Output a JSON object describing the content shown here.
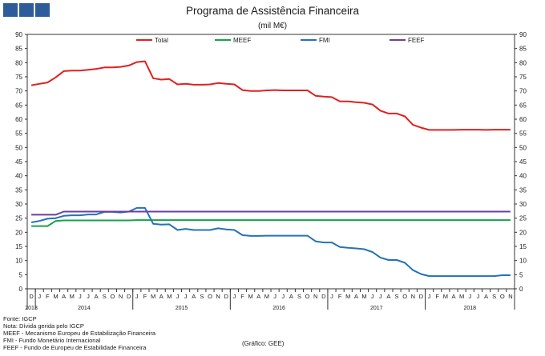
{
  "header": {
    "logo_name": "publisher-logo",
    "title": "Programa de Assistência Financeira",
    "subtitle": "(mil M€)"
  },
  "notes": [
    "Fonte: IGCP",
    "Nota: Dívida gerida pelo IGCP",
    "MEEF - Mecanismo Europeu de Estabilização Financeira",
    "FMI - Fundo Monetário Internacional",
    "FEEF - Fundo de Europeu de Estabilidade Financeira"
  ],
  "credit": "(Gráfico: GEE)",
  "chart_data": {
    "type": "line",
    "title": "Programa de Assistência Financeira",
    "subtitle": "(mil M€)",
    "ylim": [
      0,
      90
    ],
    "yticks": [
      0,
      5,
      10,
      15,
      20,
      25,
      30,
      35,
      40,
      45,
      50,
      55,
      60,
      65,
      70,
      75,
      80,
      85,
      90
    ],
    "grid": false,
    "legend_position": "top",
    "x_months": [
      "D",
      "J",
      "F",
      "M",
      "A",
      "M",
      "J",
      "J",
      "A",
      "S",
      "O",
      "N",
      "D",
      "J",
      "F",
      "M",
      "A",
      "M",
      "J",
      "J",
      "A",
      "S",
      "O",
      "N",
      "D",
      "J",
      "F",
      "M",
      "A",
      "M",
      "J",
      "J",
      "A",
      "S",
      "O",
      "N",
      "D",
      "J",
      "F",
      "M",
      "A",
      "M",
      "J",
      "J",
      "A",
      "S",
      "O",
      "N",
      "D",
      "J",
      "F",
      "M",
      "A",
      "M",
      "J",
      "J",
      "A",
      "S",
      "O",
      "N"
    ],
    "x_years": [
      {
        "label": "2013",
        "start": 0,
        "end": 0
      },
      {
        "label": "2014",
        "start": 1,
        "end": 12
      },
      {
        "label": "2015",
        "start": 13,
        "end": 24
      },
      {
        "label": "2016",
        "start": 25,
        "end": 36
      },
      {
        "label": "2017",
        "start": 37,
        "end": 48
      },
      {
        "label": "2018",
        "start": 49,
        "end": 59
      }
    ],
    "series": [
      {
        "name": "Total",
        "color": "#e02020",
        "values": [
          72.0,
          72.5,
          73.0,
          74.8,
          77.0,
          77.2,
          77.2,
          77.5,
          77.8,
          78.3,
          78.3,
          78.5,
          79.0,
          80.2,
          80.5,
          74.5,
          74.0,
          74.2,
          72.3,
          72.5,
          72.2,
          72.2,
          72.3,
          72.8,
          72.5,
          72.3,
          70.3,
          70.0,
          70.0,
          70.2,
          70.3,
          70.2,
          70.2,
          70.2,
          70.2,
          68.3,
          68.0,
          67.8,
          66.3,
          66.3,
          66.0,
          65.8,
          65.2,
          63.0,
          62.0,
          62.0,
          61.0,
          58.0,
          57.0,
          56.2,
          56.2,
          56.2,
          56.2,
          56.3,
          56.3,
          56.3,
          56.2,
          56.3,
          56.3,
          56.3
        ]
      },
      {
        "name": "MEEF",
        "color": "#16a34a",
        "values": [
          22.2,
          22.2,
          22.2,
          24.0,
          24.2,
          24.2,
          24.2,
          24.2,
          24.2,
          24.2,
          24.2,
          24.2,
          24.2,
          24.3,
          24.3,
          24.3,
          24.3,
          24.3,
          24.3,
          24.3,
          24.3,
          24.3,
          24.3,
          24.3,
          24.3,
          24.3,
          24.3,
          24.3,
          24.3,
          24.3,
          24.3,
          24.3,
          24.3,
          24.3,
          24.3,
          24.3,
          24.3,
          24.3,
          24.3,
          24.3,
          24.3,
          24.3,
          24.3,
          24.3,
          24.3,
          24.3,
          24.3,
          24.3,
          24.3,
          24.3,
          24.3,
          24.3,
          24.3,
          24.3,
          24.3,
          24.3,
          24.3,
          24.3,
          24.3,
          24.3
        ]
      },
      {
        "name": "FMI",
        "color": "#2472b6",
        "values": [
          23.5,
          24.0,
          24.8,
          25.0,
          25.8,
          26.0,
          26.0,
          26.3,
          26.3,
          27.2,
          27.2,
          27.0,
          27.3,
          28.6,
          28.6,
          23.0,
          22.7,
          22.8,
          20.8,
          21.2,
          20.8,
          20.8,
          20.8,
          21.4,
          21.0,
          20.8,
          19.0,
          18.7,
          18.7,
          18.8,
          18.8,
          18.8,
          18.8,
          18.8,
          18.8,
          16.8,
          16.4,
          16.4,
          14.8,
          14.5,
          14.3,
          14.0,
          13.0,
          11.0,
          10.2,
          10.2,
          9.2,
          6.6,
          5.2,
          4.5,
          4.5,
          4.5,
          4.5,
          4.5,
          4.5,
          4.5,
          4.5,
          4.5,
          4.8,
          4.8
        ]
      },
      {
        "name": "FEEF",
        "color": "#6b3fa0",
        "values": [
          26.2,
          26.2,
          26.2,
          26.2,
          27.3,
          27.3,
          27.3,
          27.3,
          27.3,
          27.3,
          27.3,
          27.3,
          27.3,
          27.3,
          27.3,
          27.3,
          27.3,
          27.3,
          27.3,
          27.3,
          27.3,
          27.3,
          27.3,
          27.3,
          27.3,
          27.3,
          27.3,
          27.3,
          27.3,
          27.3,
          27.3,
          27.3,
          27.3,
          27.3,
          27.3,
          27.3,
          27.3,
          27.3,
          27.3,
          27.3,
          27.3,
          27.3,
          27.3,
          27.3,
          27.3,
          27.3,
          27.3,
          27.3,
          27.3,
          27.3,
          27.3,
          27.3,
          27.3,
          27.3,
          27.3,
          27.3,
          27.3,
          27.3,
          27.3,
          27.3
        ]
      }
    ]
  }
}
